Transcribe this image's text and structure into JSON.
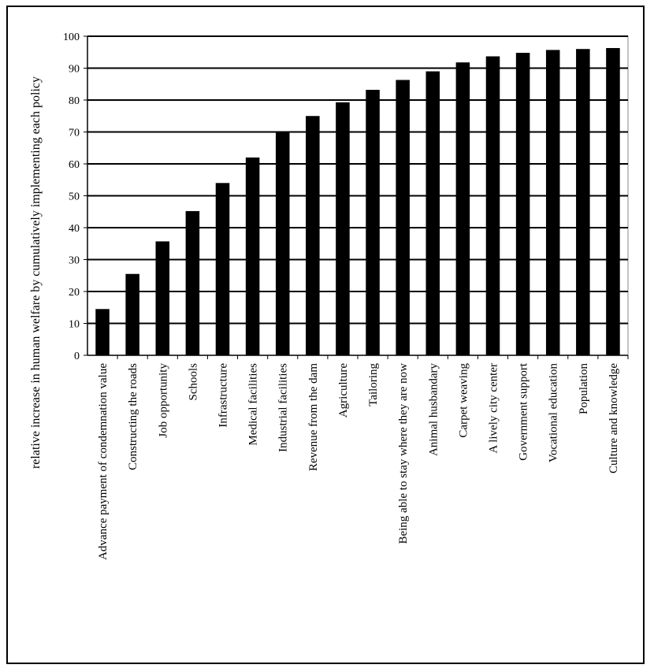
{
  "chart_data": {
    "type": "bar",
    "title": "",
    "xlabel": "",
    "ylabel": "relative increase in human welfare by cumulatively implementing each policy",
    "ylim": [
      0,
      100
    ],
    "yticks": [
      0,
      10,
      20,
      30,
      40,
      50,
      60,
      70,
      80,
      90,
      100
    ],
    "grid": true,
    "legend": "none",
    "bar_color": "#000000",
    "categories": [
      "Advance payment of condemnation value",
      "Constructing the roads",
      "Job opportunity",
      "Schools",
      "Infrastructure",
      "Medical facilities",
      "Industrial facilities",
      "Revenue from the dam",
      "Agriculture",
      "Tailoring",
      "Being able to stay where they are now",
      "Animal husbandary",
      "Carpet weaving",
      "A lively city center",
      "Government support",
      "Vocational education",
      "Population",
      "Culture and knowledge"
    ],
    "values": [
      14.5,
      25.5,
      35.7,
      45.2,
      54,
      62,
      69.8,
      75,
      79.3,
      83.2,
      86.3,
      89,
      91.8,
      93.7,
      94.8,
      95.7,
      96,
      96.3
    ]
  }
}
